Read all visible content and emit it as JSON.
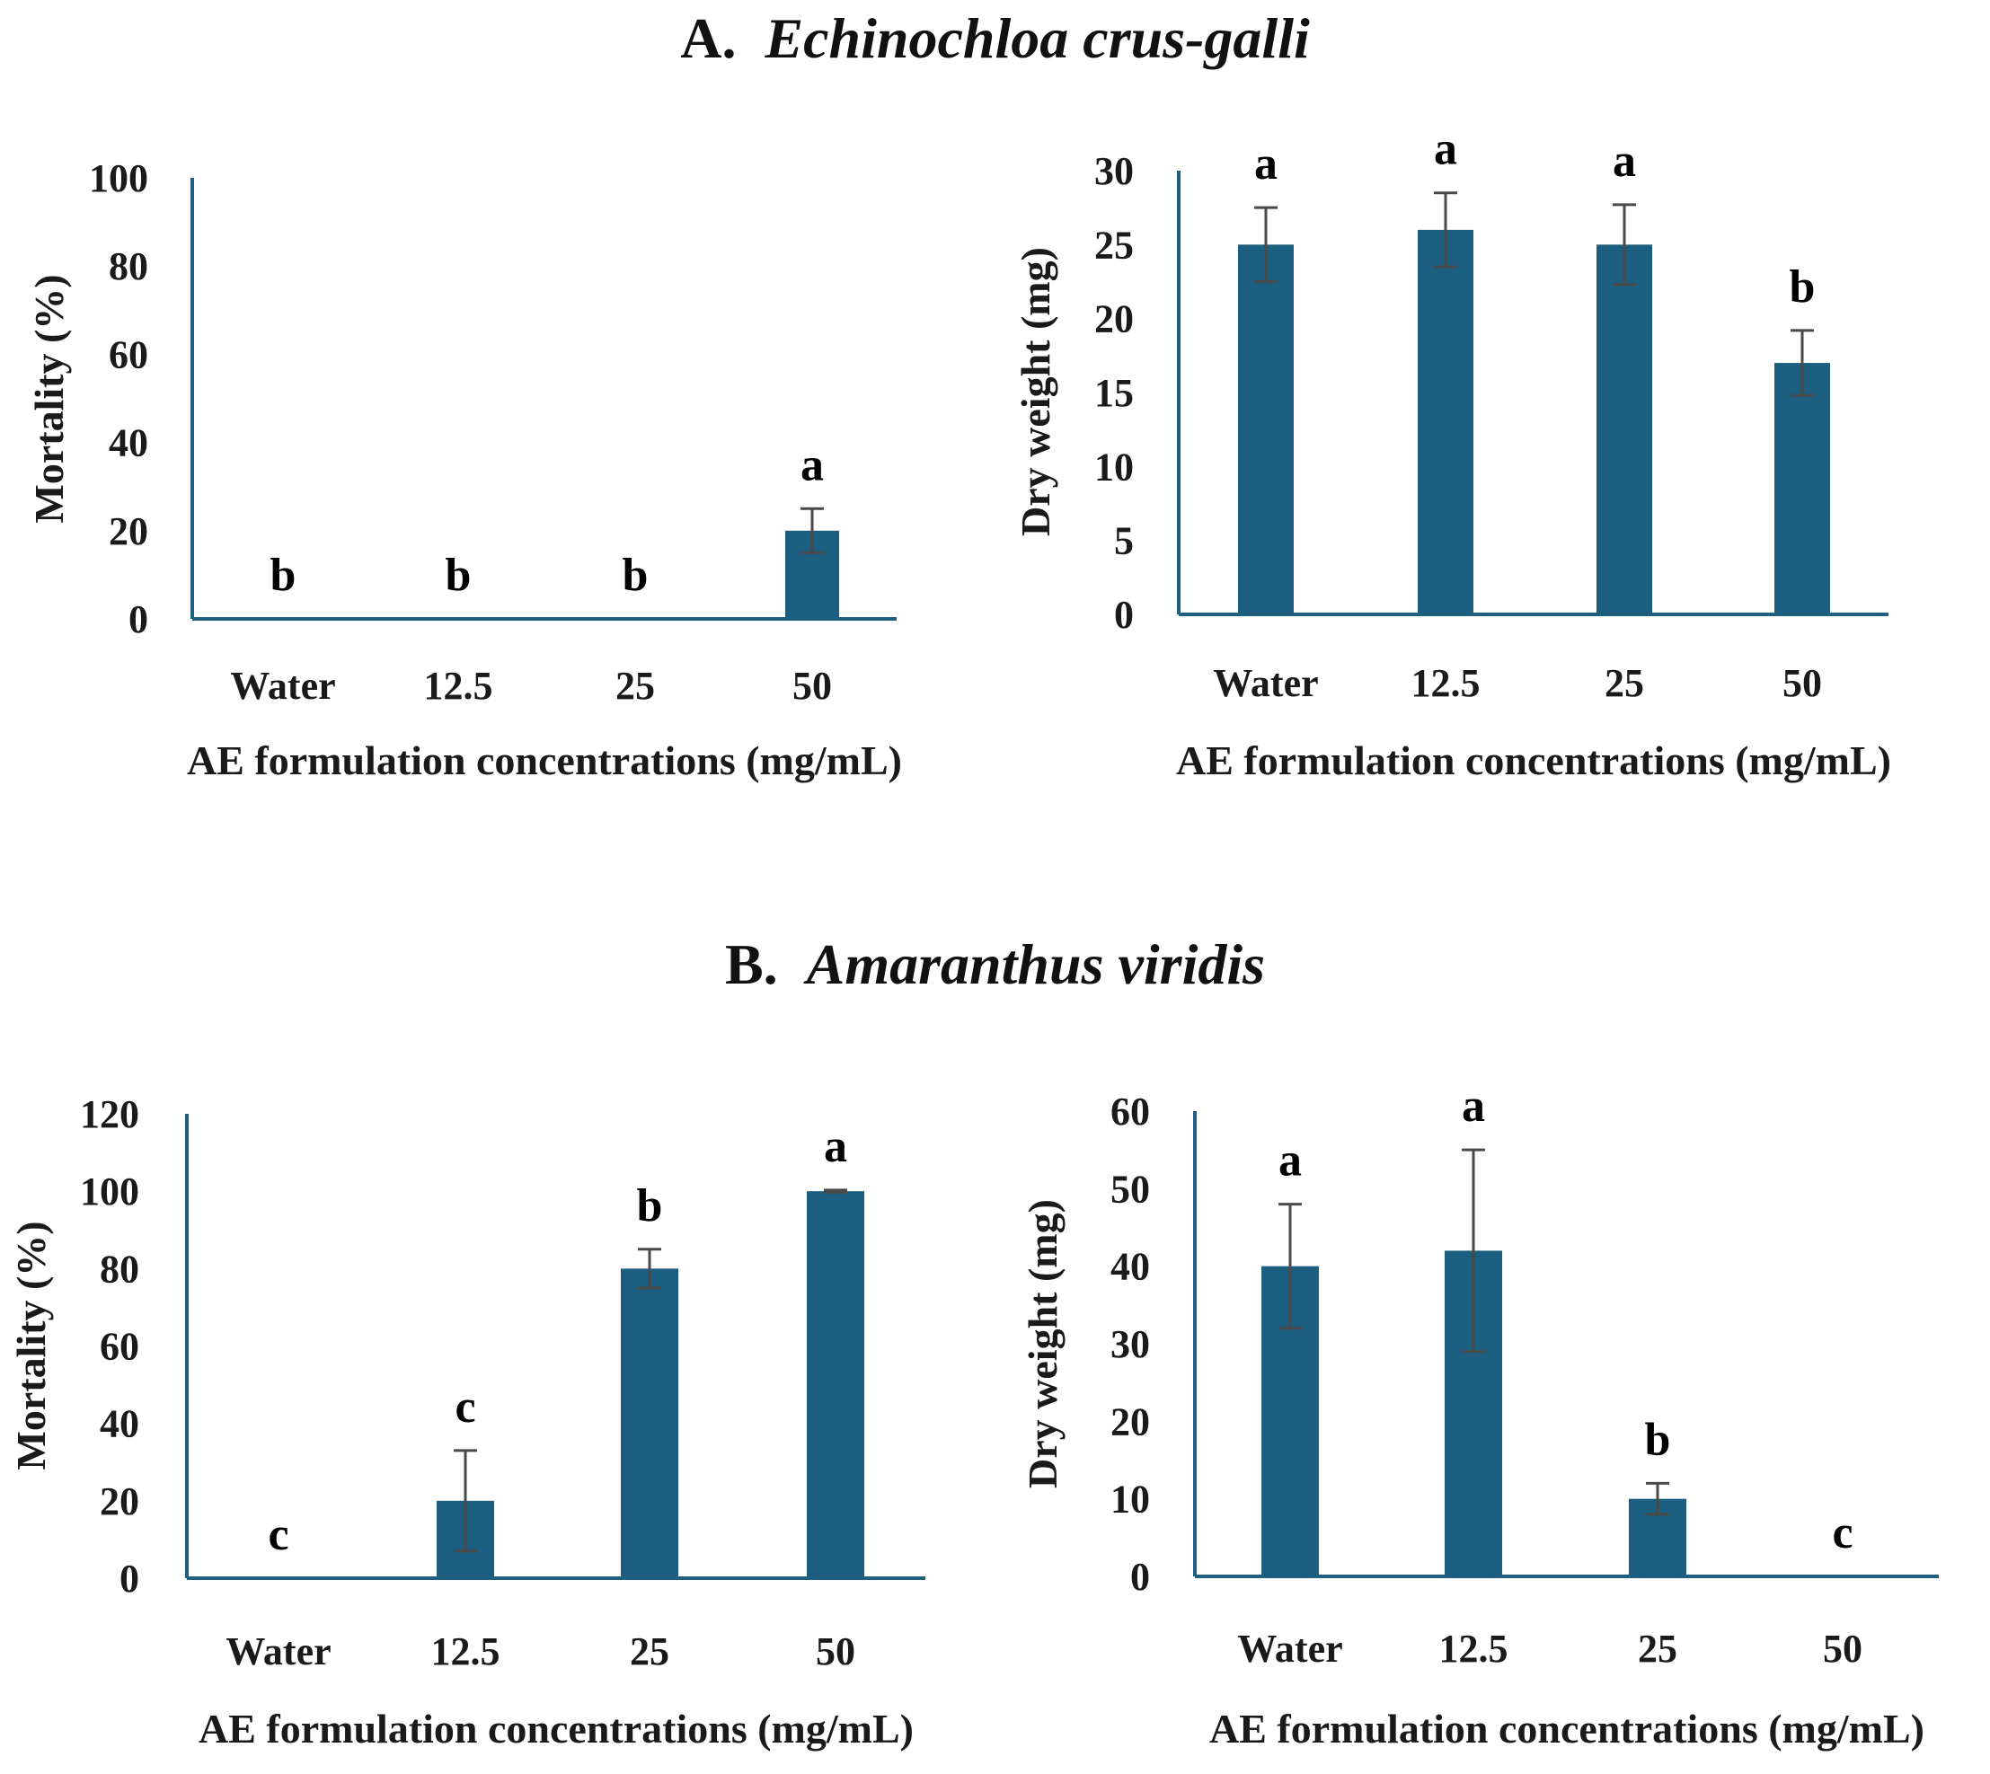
{
  "sections": [
    {
      "label": "A.",
      "species": "Echinochloa crus-galli"
    },
    {
      "label": "B.",
      "species": "Amaranthus viridis"
    }
  ],
  "colors": {
    "bar": "#1b5e80",
    "axis": "#1f5f80",
    "error": "#4a4a4a"
  },
  "chart_data": [
    {
      "type": "bar",
      "panel": "A-mortality",
      "categories": [
        "Water",
        "12.5",
        "25",
        "50"
      ],
      "values": [
        0,
        0,
        0,
        20
      ],
      "errors": [
        0,
        0,
        0,
        5
      ],
      "letters": [
        "b",
        "b",
        "b",
        "a"
      ],
      "ylabel": "Mortality (%)",
      "xlabel": "AE formulation concentrations (mg/mL)",
      "ylim": [
        0,
        100
      ],
      "yticks": [
        0,
        20,
        40,
        60,
        80,
        100
      ]
    },
    {
      "type": "bar",
      "panel": "A-dry-weight",
      "categories": [
        "Water",
        "12.5",
        "25",
        "50"
      ],
      "values": [
        25,
        26,
        25,
        17
      ],
      "errors": [
        2.5,
        2.5,
        2.7,
        2.2
      ],
      "letters": [
        "a",
        "a",
        "a",
        "b"
      ],
      "ylabel": "Dry weight (mg)",
      "xlabel": "AE formulation concentrations (mg/mL)",
      "ylim": [
        0,
        30
      ],
      "yticks": [
        0,
        5,
        10,
        15,
        20,
        25,
        30
      ]
    },
    {
      "type": "bar",
      "panel": "B-mortality",
      "categories": [
        "Water",
        "12.5",
        "25",
        "50"
      ],
      "values": [
        0,
        20,
        80,
        100
      ],
      "errors": [
        0,
        13,
        5,
        0.3
      ],
      "letters": [
        "c",
        "c",
        "b",
        "a"
      ],
      "ylabel": "Mortality (%)",
      "xlabel": "AE formulation concentrations (mg/mL)",
      "ylim": [
        0,
        120
      ],
      "yticks": [
        0,
        20,
        40,
        60,
        80,
        100,
        120
      ]
    },
    {
      "type": "bar",
      "panel": "B-dry-weight",
      "categories": [
        "Water",
        "12.5",
        "25",
        "50"
      ],
      "values": [
        40,
        42,
        10,
        0
      ],
      "errors": [
        8,
        13,
        2,
        0
      ],
      "letters": [
        "a",
        "a",
        "b",
        "c"
      ],
      "ylabel": "Dry weight (mg)",
      "xlabel": "AE formulation concentrations (mg/mL)",
      "ylim": [
        0,
        60
      ],
      "yticks": [
        0,
        10,
        20,
        30,
        40,
        50,
        60
      ]
    }
  ]
}
